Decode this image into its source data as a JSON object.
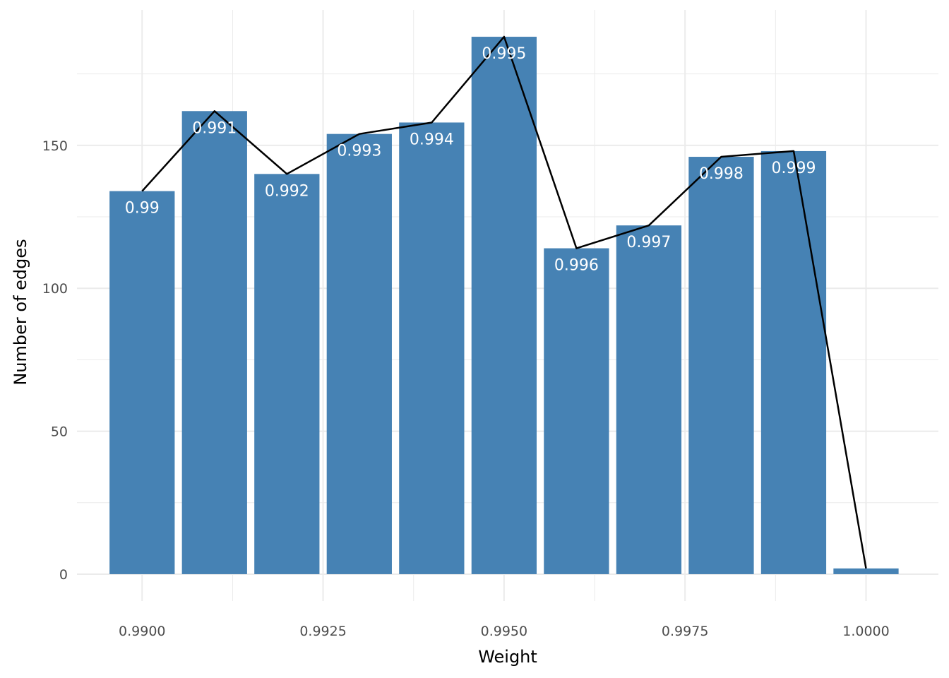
{
  "chart_data": {
    "type": "bar",
    "x": [
      0.99,
      0.991,
      0.992,
      0.993,
      0.994,
      0.995,
      0.996,
      0.997,
      0.998,
      0.999,
      1.0
    ],
    "values": [
      134,
      162,
      140,
      154,
      158,
      188,
      114,
      122,
      146,
      148,
      2
    ],
    "bar_labels": [
      "0.99",
      "0.991",
      "0.992",
      "0.993",
      "0.994",
      "0.995",
      "0.996",
      "0.997",
      "0.998",
      "0.999",
      ""
    ],
    "overlay_line": true,
    "xlabel": "Weight",
    "ylabel": "Number of edges",
    "xlim": [
      0.9891,
      1.001
    ],
    "ylim": [
      -9.4,
      197.4
    ],
    "xticks": [
      0.99,
      0.9925,
      0.995,
      0.9975,
      1.0
    ],
    "xtick_labels": [
      "0.9900",
      "0.9925",
      "0.9950",
      "0.9975",
      "1.0000"
    ],
    "yticks": [
      0,
      50,
      100,
      150
    ],
    "ytick_labels": [
      "0",
      "50",
      "100",
      "150"
    ],
    "grid": true,
    "legend": "none",
    "colors": {
      "bar": "#4682b4",
      "line": "#000000",
      "grid": "#ebebeb",
      "background": "#ffffff"
    }
  }
}
